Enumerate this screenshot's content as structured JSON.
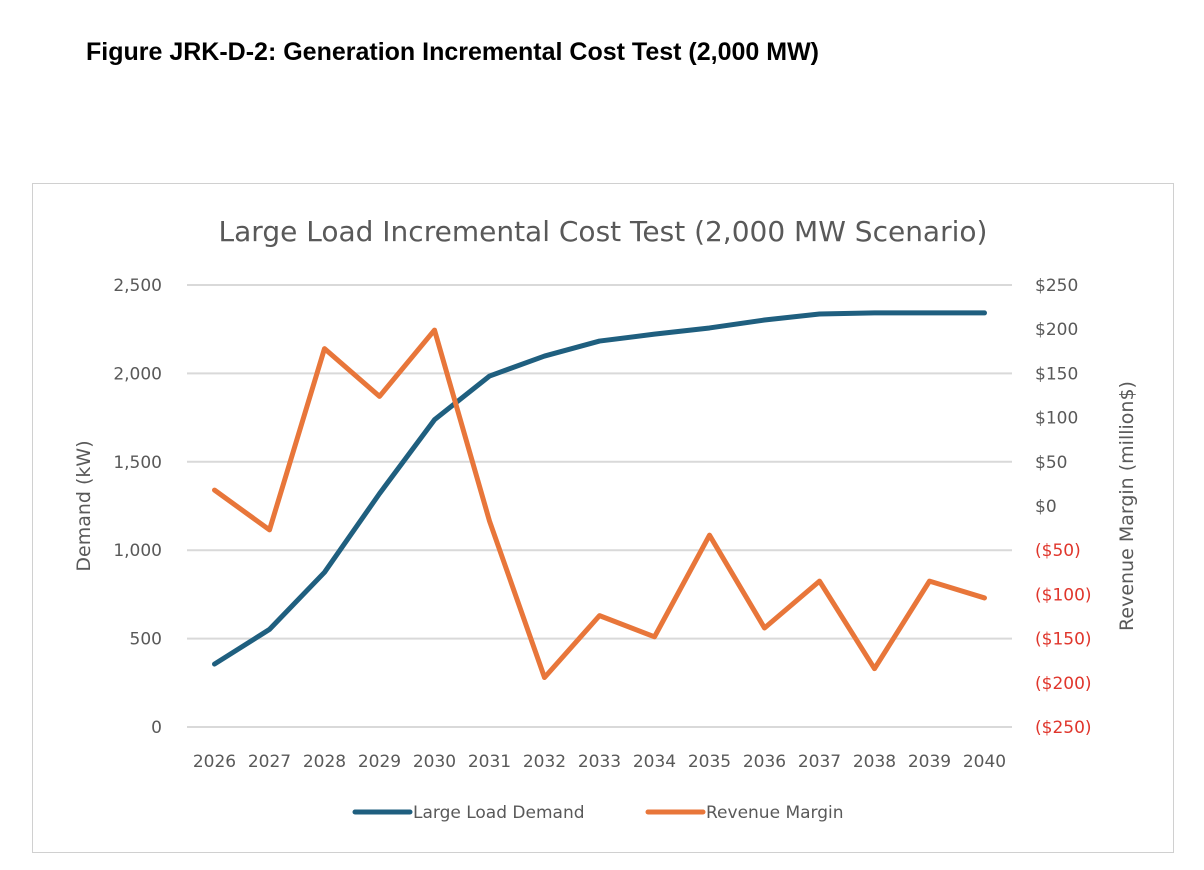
{
  "figure_title": "Figure JRK-D-2:  Generation Incremental Cost Test (2,000 MW)",
  "chart_data": {
    "type": "line",
    "title": "Large Load Incremental Cost Test (2,000 MW Scenario)",
    "ylabel": "Demand (kW)",
    "y2label": "Revenue Margin (million$)",
    "categories": [
      "2026",
      "2027",
      "2028",
      "2029",
      "2030",
      "2031",
      "2032",
      "2033",
      "2034",
      "2035",
      "2036",
      "2037",
      "2038",
      "2039",
      "2040"
    ],
    "ylim": [
      0,
      2500
    ],
    "y2lim": [
      -250,
      250
    ],
    "yticks": [
      "0",
      "500",
      "1,000",
      "1,500",
      "2,000",
      "2,500"
    ],
    "y2ticks": [
      "($250)",
      "($200)",
      "($150)",
      "($100)",
      "($50)",
      "$0",
      "$50",
      "$100",
      "$150",
      "$200",
      "$250"
    ],
    "grid": true,
    "legend_placement": "bottom",
    "series": [
      {
        "name": "Large Load Demand",
        "axis": "left",
        "color": "#1f5f7f",
        "values": [
          356,
          552,
          875,
          1320,
          1738,
          1985,
          2098,
          2183,
          2222,
          2257,
          2302,
          2336,
          2342,
          2342,
          2342
        ]
      },
      {
        "name": "Revenue Margin",
        "axis": "right",
        "color": "#e8763a",
        "values": [
          18,
          -27,
          178,
          124,
          199,
          -17,
          -194,
          -124,
          -148,
          -33,
          -138,
          -85,
          -184,
          -85,
          -104
        ]
      }
    ],
    "colors": {
      "negative_tick": "#e0362c",
      "tick": "#595959",
      "grid": "#d9d9d9"
    }
  }
}
